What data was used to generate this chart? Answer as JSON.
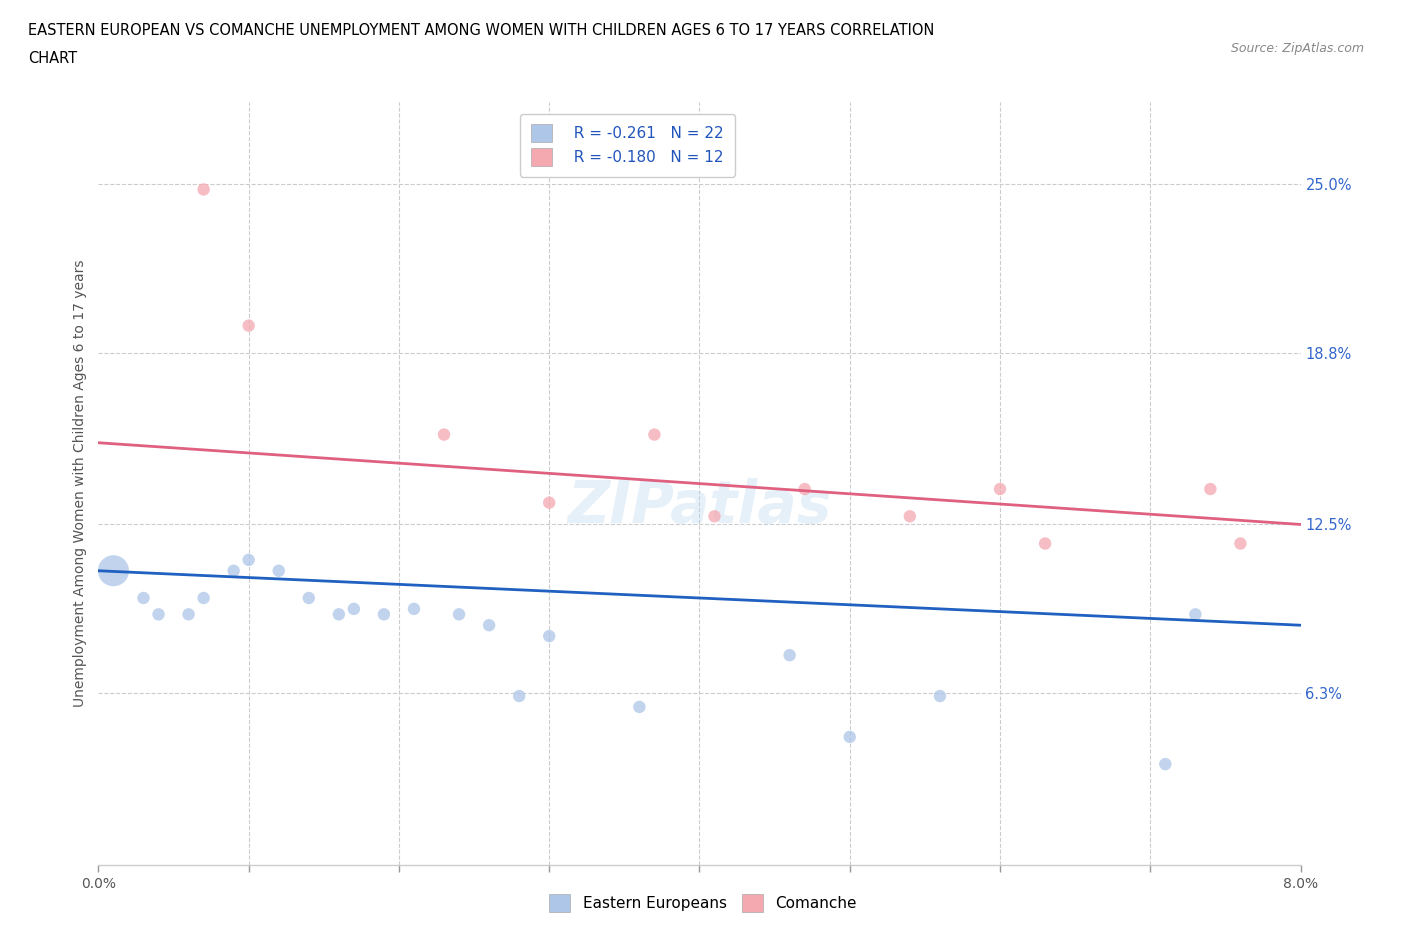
{
  "title_line1": "EASTERN EUROPEAN VS COMANCHE UNEMPLOYMENT AMONG WOMEN WITH CHILDREN AGES 6 TO 17 YEARS CORRELATION",
  "title_line2": "CHART",
  "source": "Source: ZipAtlas.com",
  "ylabel": "Unemployment Among Women with Children Ages 6 to 17 years",
  "xlim": [
    0.0,
    0.08
  ],
  "ylim": [
    0.0,
    0.28
  ],
  "ytick_positions": [
    0.063,
    0.125,
    0.188,
    0.25
  ],
  "ytick_labels": [
    "6.3%",
    "12.5%",
    "18.8%",
    "25.0%"
  ],
  "background_color": "#ffffff",
  "grid_color": "#cccccc",
  "watermark": "ZIPatlas",
  "eastern_european_color": "#aec6e8",
  "comanche_color": "#f4a8b0",
  "eastern_european_line_color": "#2060c0",
  "comanche_line_color": "#e06080",
  "legend_r1": "R = -0.261",
  "legend_n1": "N = 22",
  "legend_r2": "R = -0.180",
  "legend_n2": "N = 12",
  "eastern_europeans_x": [
    0.001,
    0.003,
    0.004,
    0.006,
    0.007,
    0.009,
    0.01,
    0.012,
    0.014,
    0.016,
    0.017,
    0.019,
    0.021,
    0.024,
    0.026,
    0.028,
    0.03,
    0.036,
    0.046,
    0.05,
    0.056,
    0.071,
    0.073
  ],
  "eastern_europeans_y": [
    0.108,
    0.098,
    0.092,
    0.092,
    0.098,
    0.108,
    0.112,
    0.108,
    0.098,
    0.092,
    0.094,
    0.092,
    0.094,
    0.092,
    0.088,
    0.062,
    0.084,
    0.058,
    0.077,
    0.047,
    0.062,
    0.037,
    0.092
  ],
  "eastern_europeans_size": [
    500,
    80,
    80,
    80,
    80,
    80,
    80,
    80,
    80,
    80,
    80,
    80,
    80,
    80,
    80,
    80,
    80,
    80,
    80,
    80,
    80,
    80,
    80
  ],
  "comanche_x": [
    0.007,
    0.01,
    0.023,
    0.03,
    0.037,
    0.041,
    0.047,
    0.054,
    0.06,
    0.063,
    0.074,
    0.076
  ],
  "comanche_y": [
    0.248,
    0.198,
    0.158,
    0.133,
    0.158,
    0.128,
    0.138,
    0.128,
    0.138,
    0.118,
    0.138,
    0.118
  ],
  "comanche_size": [
    80,
    80,
    80,
    80,
    80,
    80,
    80,
    80,
    80,
    80,
    80,
    80
  ],
  "eastern_line_x": [
    0.0,
    0.08
  ],
  "eastern_line_y": [
    0.108,
    0.088
  ],
  "comanche_line_x": [
    0.0,
    0.08
  ],
  "comanche_line_y": [
    0.155,
    0.125
  ]
}
